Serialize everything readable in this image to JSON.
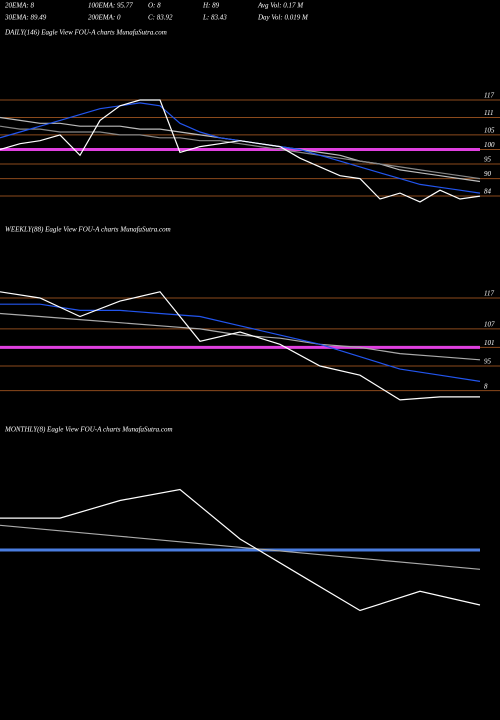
{
  "header": {
    "row1": [
      "20EMA: 8",
      "100EMA: 95.77",
      "O: 8",
      "H: 89",
      "Avg Vol: 0.17 M"
    ],
    "row2": [
      "30EMA: 89.49",
      "200EMA: 0",
      "C: 83.92",
      "L: 83.43",
      "Day Vol: 0.019 M"
    ]
  },
  "chart_data": [
    {
      "type": "line",
      "title": "DAILY(146) Eagle  View  FOU-A charts MunafaSutra.com",
      "ylim": [
        80,
        135
      ],
      "yticks": [
        117,
        111,
        105,
        100,
        95,
        90,
        84
      ],
      "grid": true,
      "grid_color": "#8b4a1c",
      "hline": {
        "value": 100,
        "color": "#e040e0"
      },
      "series": [
        {
          "color": "#bbbbbb",
          "values": [
            111,
            110,
            109,
            109,
            108,
            108,
            108,
            107,
            107,
            106,
            105,
            104,
            103,
            102,
            101,
            100,
            99,
            98,
            96,
            95,
            93,
            92,
            91,
            90,
            89
          ]
        },
        {
          "color": "#888888",
          "values": [
            108,
            107,
            107,
            106,
            106,
            106,
            105,
            105,
            104,
            104,
            103,
            103,
            102,
            101,
            100,
            99,
            98,
            97,
            96,
            95,
            94,
            93,
            92,
            91,
            90
          ]
        },
        {
          "color": "#2255ee",
          "values": [
            104,
            106,
            108,
            110,
            112,
            114,
            115,
            116,
            115,
            109,
            106,
            104,
            103,
            102,
            101,
            100,
            98,
            96,
            94,
            92,
            90,
            88,
            87,
            86,
            85
          ]
        },
        {
          "color": "#ffffff",
          "values": [
            100,
            102,
            103,
            105,
            98,
            110,
            115,
            117,
            117,
            99,
            101,
            102,
            103,
            102,
            101,
            97,
            94,
            91,
            90,
            83,
            85,
            82,
            86,
            83,
            84
          ]
        }
      ]
    },
    {
      "type": "line",
      "title": "WEEKLY(88) Eagle  View  FOU-A charts MunafaSutra.com",
      "ylim": [
        80,
        125
      ],
      "yticks": [
        117,
        107,
        101,
        95,
        {
          "value": 87,
          "label": "8"
        }
      ],
      "grid": true,
      "grid_color": "#8b4a1c",
      "hline": {
        "value": 101,
        "color": "#e040e0"
      },
      "series": [
        {
          "color": "#aaaaaa",
          "values": [
            112,
            111,
            110,
            109,
            108,
            107,
            105,
            104,
            102,
            101,
            99,
            98,
            97
          ]
        },
        {
          "color": "#2255ee",
          "values": [
            115,
            115,
            113,
            113,
            112,
            111,
            108,
            105,
            102,
            98,
            94,
            92,
            90
          ]
        },
        {
          "color": "#ffffff",
          "values": [
            119,
            117,
            111,
            116,
            119,
            103,
            106,
            102,
            95,
            92,
            84,
            85,
            85
          ]
        }
      ]
    },
    {
      "type": "line",
      "title": "MONTHLY(8) Eagle  View  FOU-A charts MunafaSutra.com",
      "ylim": [
        60,
        140
      ],
      "grid": false,
      "hline": {
        "value": 100,
        "color": "#4a7de0"
      },
      "series": [
        {
          "color": "#aaaaaa",
          "values": [
            109,
            107,
            105,
            103,
            101,
            99,
            97,
            95,
            93
          ]
        },
        {
          "color": "#ffffff",
          "values": [
            111.6,
            111.6,
            118,
            122,
            104,
            91,
            78,
            85,
            80
          ]
        }
      ]
    }
  ]
}
